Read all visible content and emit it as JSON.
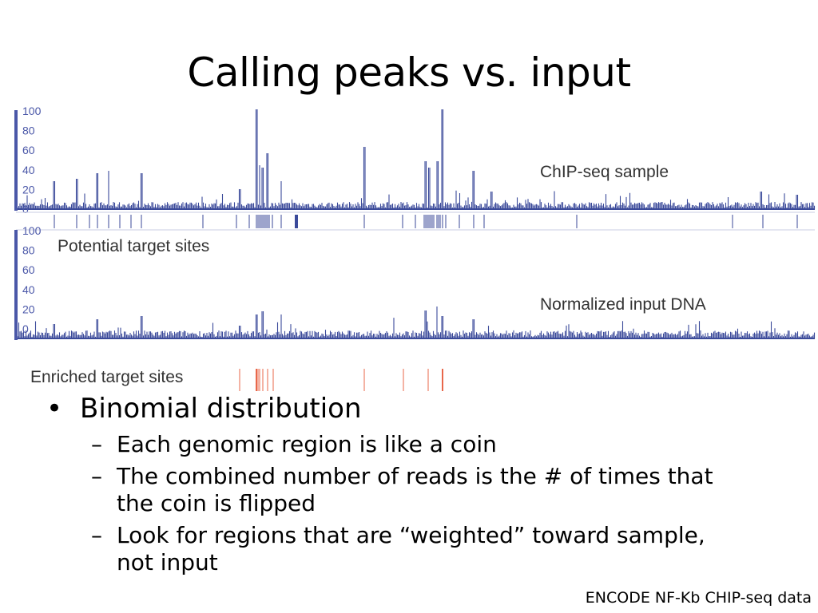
{
  "slide": {
    "title": "Calling peaks vs. input",
    "footer": "ENCODE NF-Kb CHIP-seq data"
  },
  "figure": {
    "chipseq_label": "ChIP-seq sample",
    "potential_label": "Potential target sites",
    "input_label": "Normalized input DNA",
    "enriched_label": "Enriched target sites",
    "top_axis_ticks": [
      "100",
      "80",
      "60",
      "40",
      "20",
      "0"
    ],
    "bottom_axis_ticks": [
      "100",
      "80",
      "60",
      "40",
      "20",
      "0"
    ],
    "colors": {
      "track": "#3b4a9a",
      "enriched": "#e8674a",
      "axis": "#4a57a8"
    }
  },
  "bullets": [
    {
      "text": "Binomial distribution",
      "children": [
        "Each genomic region is like a coin",
        "The combined number of reads is the # of times that the coin is flipped",
        "Look for regions that are “weighted” toward sample, not input"
      ]
    }
  ]
}
